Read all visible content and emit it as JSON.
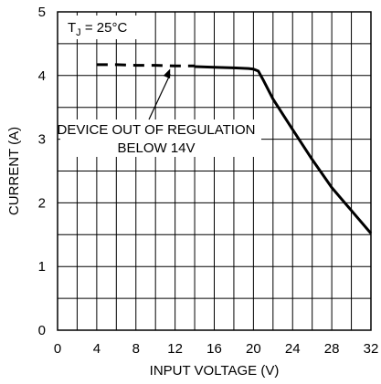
{
  "chart_data": {
    "type": "line",
    "xlabel": "INPUT VOLTAGE (V)",
    "ylabel": "CURRENT (A)",
    "xlim": [
      0,
      32
    ],
    "ylim": [
      0,
      5
    ],
    "x_ticks": [
      "0",
      "4",
      "8",
      "12",
      "16",
      "20",
      "24",
      "28",
      "32"
    ],
    "y_ticks": [
      "0",
      "1",
      "2",
      "3",
      "4",
      "5"
    ],
    "grid": true,
    "annotations": {
      "condition": {
        "prefix": "T",
        "subscript": "J",
        "suffix": " = 25°C"
      },
      "regulation_line1": "DEVICE OUT OF REGULATION",
      "regulation_line2": "BELOW 14V",
      "arrow_target": {
        "x": 11.5,
        "y": 4.15
      }
    },
    "series": [
      {
        "style": "dashed",
        "x": [
          4,
          6,
          8,
          10,
          12,
          14
        ],
        "y": [
          4.17,
          4.17,
          4.16,
          4.16,
          4.15,
          4.15
        ]
      },
      {
        "style": "solid",
        "x": [
          14,
          16,
          18,
          19.5,
          20,
          20.5,
          21,
          22,
          24,
          26,
          28,
          30,
          32
        ],
        "y": [
          4.14,
          4.13,
          4.12,
          4.11,
          4.1,
          4.07,
          3.93,
          3.63,
          3.15,
          2.68,
          2.24,
          1.88,
          1.52
        ]
      }
    ]
  }
}
